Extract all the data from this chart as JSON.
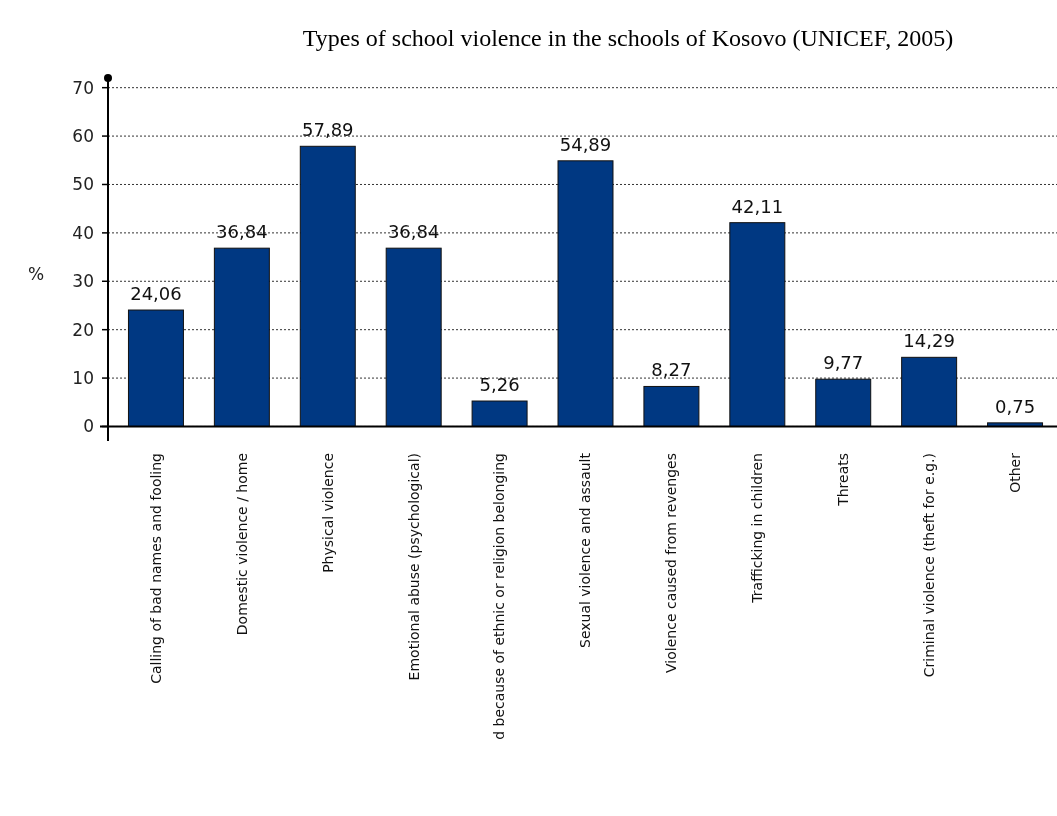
{
  "chart_data": {
    "type": "bar",
    "title": "Types of school violence in the schools of Kosovo (UNICEF, 2005)",
    "ylabel": "%",
    "categories": [
      "Calling of bad names and fooling",
      "Domestic violence / home",
      "Physical violence",
      "Emotional abuse (psychological)",
      "d because of ethnic or religion belonging",
      "Sexual violence and assault",
      "Violence caused from revenges",
      "Trafficking in children",
      "Threats",
      "Criminal violence (theft for e.g.)",
      "Other"
    ],
    "values": [
      24.06,
      36.84,
      57.89,
      36.84,
      5.26,
      54.89,
      8.27,
      42.11,
      9.77,
      14.29,
      0.75
    ],
    "value_labels": [
      "24,06",
      "36,84",
      "57,89",
      "36,84",
      "5,26",
      "54,89",
      "8,27",
      "42,11",
      "9,77",
      "14,29",
      "0,75"
    ],
    "color": "#003882",
    "ylim": [
      -3,
      72
    ],
    "yticks": [
      0,
      10,
      20,
      30,
      40,
      50,
      60,
      70
    ],
    "grid": "y"
  }
}
